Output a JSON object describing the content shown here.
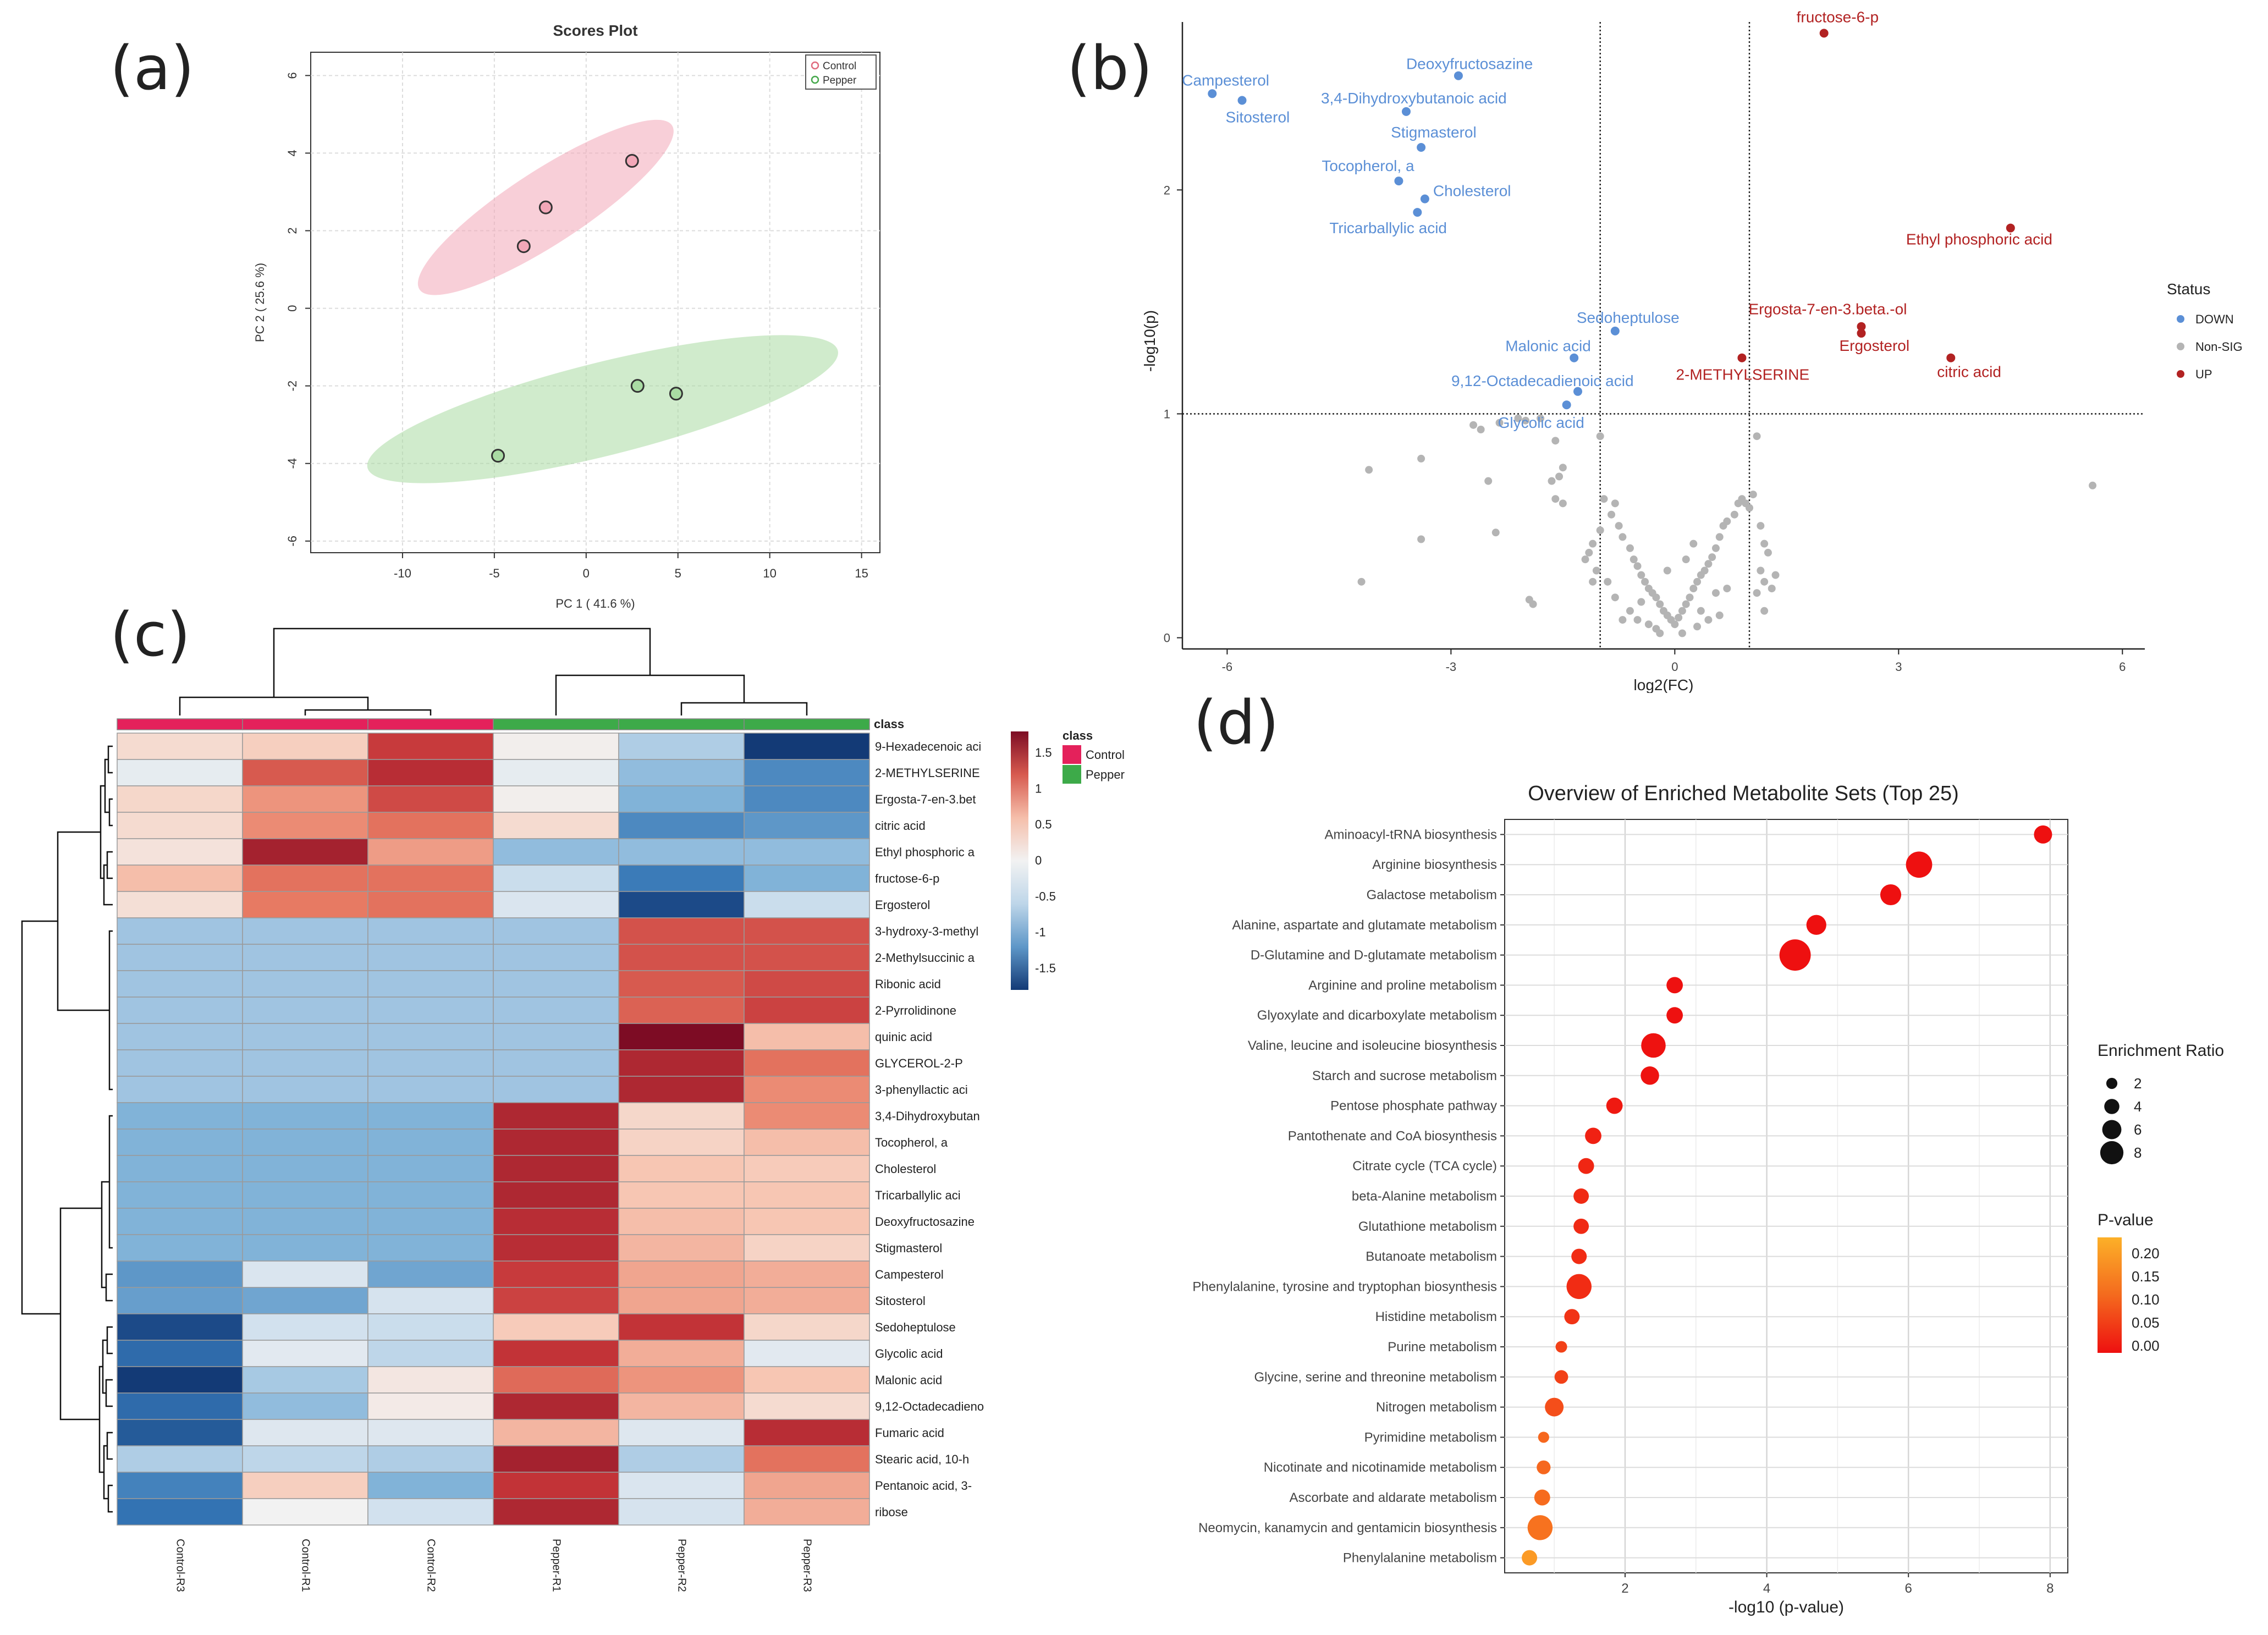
{
  "panel_labels": [
    "(a)",
    "(b)",
    "(c)",
    "(d)"
  ],
  "chart_data": [
    {
      "panel": "(a)",
      "type": "scatter",
      "title": "Scores Plot",
      "xlabel": "PC 1 ( 41.6 %)",
      "ylabel": "PC 2 ( 25.6 %)",
      "xlim": [
        -15,
        16
      ],
      "ylim": [
        -6.3,
        6.6
      ],
      "xticks": [
        -10,
        -5,
        0,
        5,
        10,
        15
      ],
      "yticks": [
        -6,
        -4,
        -2,
        0,
        2,
        4,
        6
      ],
      "grid": true,
      "legend_position": "top-right",
      "series": [
        {
          "name": "Control",
          "color": "#e06b7e",
          "fill": "#f2a7b8",
          "points": [
            [
              -2.2,
              2.6
            ],
            [
              -3.4,
              1.6
            ],
            [
              2.5,
              3.8
            ]
          ],
          "ellipse": {
            "center": [
              -2.2,
              2.6
            ],
            "semi_major": 8.2,
            "semi_minor": 0.95,
            "angle_deg": 33
          }
        },
        {
          "name": "Pepper",
          "color": "#45a84b",
          "fill": "#a9dba3",
          "points": [
            [
              -4.8,
              -3.8
            ],
            [
              2.8,
              -2.0
            ],
            [
              4.9,
              -2.2
            ]
          ],
          "ellipse": {
            "center": [
              0.9,
              -2.6
            ],
            "semi_major": 13.2,
            "semi_minor": 1.2,
            "angle_deg": 14
          }
        }
      ]
    },
    {
      "panel": "(b)",
      "type": "scatter",
      "title": "",
      "xlabel": "log2(FC)",
      "ylabel": "-log10(p)",
      "xlim": [
        -6.6,
        6.3
      ],
      "ylim": [
        -0.05,
        2.75
      ],
      "xticks": [
        -6,
        -3,
        0,
        3,
        6
      ],
      "yticks": [
        0,
        1,
        2
      ],
      "thresholds": {
        "fc": [
          -1,
          1
        ],
        "p": 1
      },
      "legend_title": "Status",
      "legend": [
        {
          "label": "DOWN",
          "color": "#5b8fd6"
        },
        {
          "label": "Non-SIG",
          "color": "#b4b4b4"
        },
        {
          "label": "UP",
          "color": "#b22222"
        }
      ],
      "up_points": [
        {
          "label": "fructose-6-p",
          "x": 2.0,
          "y": 2.7
        },
        {
          "label": "Ethyl phosphoric acid",
          "x": 4.5,
          "y": 1.83
        },
        {
          "label": "Ergosta-7-en-3.beta.-ol",
          "x": 2.5,
          "y": 1.39
        },
        {
          "label": "Ergosterol",
          "x": 2.5,
          "y": 1.36
        },
        {
          "label": "citric acid",
          "x": 3.7,
          "y": 1.25
        },
        {
          "label": "2-METHYLSERINE",
          "x": 0.9,
          "y": 1.25
        }
      ],
      "down_points": [
        {
          "label": "Campesterol",
          "x": -6.2,
          "y": 2.43
        },
        {
          "label": "Sitosterol",
          "x": -5.8,
          "y": 2.4
        },
        {
          "label": "Deoxyfructosazine",
          "x": -2.9,
          "y": 2.51
        },
        {
          "label": "3,4-Dihydroxybutanoic acid",
          "x": -3.6,
          "y": 2.35
        },
        {
          "label": "Stigmasterol",
          "x": -3.4,
          "y": 2.19
        },
        {
          "label": "Tocopherol, a",
          "x": -3.7,
          "y": 2.04
        },
        {
          "label": "Cholesterol",
          "x": -3.35,
          "y": 1.96
        },
        {
          "label": "Tricarballylic acid",
          "x": -3.45,
          "y": 1.9
        },
        {
          "label": "Sedoheptulose",
          "x": -0.8,
          "y": 1.37
        },
        {
          "label": "Malonic acid",
          "x": -1.35,
          "y": 1.25
        },
        {
          "label": "9,12-Octadecadienoic acid",
          "x": -1.3,
          "y": 1.1
        },
        {
          "label": "Glycolic acid",
          "x": -1.45,
          "y": 1.04
        }
      ],
      "nonsig_points": [
        [
          -4.1,
          0.75
        ],
        [
          -3.4,
          0.8
        ],
        [
          -3.4,
          0.44
        ],
        [
          -4.2,
          0.25
        ],
        [
          -2.5,
          0.7
        ],
        [
          -2.4,
          0.47
        ],
        [
          -2.7,
          0.95
        ],
        [
          -2.6,
          0.93
        ],
        [
          -2.35,
          0.96
        ],
        [
          -2.1,
          0.98
        ],
        [
          -2.0,
          0.97
        ],
        [
          -1.8,
          0.98
        ],
        [
          -1.6,
          0.88
        ],
        [
          -1.55,
          0.72
        ],
        [
          -1.5,
          0.76
        ],
        [
          -1.65,
          0.7
        ],
        [
          -1.6,
          0.62
        ],
        [
          -1.5,
          0.6
        ],
        [
          -1.0,
          0.9
        ],
        [
          -0.95,
          0.62
        ],
        [
          -1.1,
          0.42
        ],
        [
          -1.0,
          0.48
        ],
        [
          -1.15,
          0.38
        ],
        [
          -1.2,
          0.35
        ],
        [
          -1.05,
          0.3
        ],
        [
          -1.1,
          0.25
        ],
        [
          -1.95,
          0.17
        ],
        [
          -1.9,
          0.15
        ],
        [
          -0.9,
          0.25
        ],
        [
          -0.8,
          0.6
        ],
        [
          -0.85,
          0.55
        ],
        [
          -0.75,
          0.5
        ],
        [
          -0.7,
          0.45
        ],
        [
          -0.6,
          0.4
        ],
        [
          -0.55,
          0.35
        ],
        [
          -0.5,
          0.32
        ],
        [
          -0.45,
          0.28
        ],
        [
          -0.4,
          0.25
        ],
        [
          -0.35,
          0.22
        ],
        [
          -0.3,
          0.2
        ],
        [
          -0.25,
          0.18
        ],
        [
          -0.2,
          0.15
        ],
        [
          -0.15,
          0.12
        ],
        [
          -0.1,
          0.1
        ],
        [
          -0.05,
          0.08
        ],
        [
          0.0,
          0.06
        ],
        [
          0.05,
          0.09
        ],
        [
          0.1,
          0.12
        ],
        [
          0.15,
          0.15
        ],
        [
          0.2,
          0.18
        ],
        [
          0.25,
          0.22
        ],
        [
          0.3,
          0.25
        ],
        [
          0.35,
          0.28
        ],
        [
          0.4,
          0.3
        ],
        [
          0.45,
          0.33
        ],
        [
          0.5,
          0.36
        ],
        [
          0.55,
          0.4
        ],
        [
          0.6,
          0.45
        ],
        [
          0.65,
          0.5
        ],
        [
          0.7,
          0.52
        ],
        [
          0.8,
          0.55
        ],
        [
          0.85,
          0.6
        ],
        [
          0.9,
          0.62
        ],
        [
          0.95,
          0.6
        ],
        [
          1.0,
          0.58
        ],
        [
          1.05,
          0.64
        ],
        [
          1.1,
          0.9
        ],
        [
          1.15,
          0.5
        ],
        [
          1.2,
          0.42
        ],
        [
          1.15,
          0.3
        ],
        [
          1.2,
          0.25
        ],
        [
          1.1,
          0.2
        ],
        [
          1.25,
          0.38
        ],
        [
          1.3,
          0.22
        ],
        [
          1.2,
          0.12
        ],
        [
          1.35,
          0.28
        ],
        [
          -0.6,
          0.12
        ],
        [
          -0.5,
          0.08
        ],
        [
          -0.35,
          0.06
        ],
        [
          -0.25,
          0.04
        ],
        [
          0.1,
          0.02
        ],
        [
          0.3,
          0.05
        ],
        [
          0.45,
          0.08
        ],
        [
          0.6,
          0.1
        ],
        [
          0.35,
          0.12
        ],
        [
          -0.2,
          0.02
        ],
        [
          -0.8,
          0.18
        ],
        [
          -0.7,
          0.08
        ],
        [
          0.7,
          0.22
        ],
        [
          -0.45,
          0.16
        ],
        [
          0.15,
          0.35
        ],
        [
          -0.1,
          0.3
        ],
        [
          0.25,
          0.42
        ],
        [
          0.55,
          0.2
        ],
        [
          5.6,
          0.68
        ]
      ]
    },
    {
      "panel": "(c)",
      "type": "heatmap",
      "title": "",
      "columns": [
        "Control-R3",
        "Control-R1",
        "Control-R2",
        "Pepper-R1",
        "Pepper-R2",
        "Pepper-R3"
      ],
      "column_classes": [
        "Control",
        "Control",
        "Control",
        "Pepper",
        "Pepper",
        "Pepper"
      ],
      "class_label": "class",
      "class_legend": [
        {
          "label": "Control",
          "color": "#e4215b"
        },
        {
          "label": "Pepper",
          "color": "#3daa49"
        }
      ],
      "color_scale": {
        "min": -1.8,
        "max": 1.8,
        "ticks": [
          1.5,
          1,
          0.5,
          0,
          -0.5,
          -1,
          -1.5
        ]
      },
      "rows": [
        {
          "name": "9-Hexadecenoic aci",
          "values": [
            0.3,
            0.45,
            1.4,
            0.05,
            -0.7,
            -1.9
          ]
        },
        {
          "name": "2-METHYLSERINE",
          "values": [
            -0.15,
            1.2,
            1.5,
            -0.15,
            -0.9,
            -1.3
          ]
        },
        {
          "name": "Ergosta-7-en-3.bet",
          "values": [
            0.35,
            0.85,
            1.3,
            0.05,
            -1.0,
            -1.3
          ]
        },
        {
          "name": "citric acid",
          "values": [
            0.3,
            0.9,
            1.05,
            0.3,
            -1.3,
            -1.2
          ]
        },
        {
          "name": "Ethyl phosphoric a",
          "values": [
            0.2,
            1.6,
            0.8,
            -0.9,
            -0.9,
            -0.9
          ]
        },
        {
          "name": "fructose-6-p",
          "values": [
            0.6,
            1.05,
            1.05,
            -0.5,
            -1.4,
            -1.0
          ]
        },
        {
          "name": "Ergosterol",
          "values": [
            0.25,
            1.0,
            1.05,
            -0.3,
            -1.7,
            -0.5
          ]
        },
        {
          "name": "3-hydroxy-3-methyl",
          "values": [
            -0.8,
            -0.8,
            -0.8,
            -0.8,
            1.25,
            1.25
          ]
        },
        {
          "name": "2-Methylsuccinic a",
          "values": [
            -0.8,
            -0.8,
            -0.8,
            -0.8,
            1.25,
            1.25
          ]
        },
        {
          "name": "Ribonic acid",
          "values": [
            -0.8,
            -0.8,
            -0.8,
            -0.8,
            1.2,
            1.3
          ]
        },
        {
          "name": "2-Pyrrolidinone",
          "values": [
            -0.8,
            -0.8,
            -0.8,
            -0.8,
            1.15,
            1.35
          ]
        },
        {
          "name": "quinic acid",
          "values": [
            -0.8,
            -0.8,
            -0.8,
            -0.8,
            1.8,
            0.6
          ]
        },
        {
          "name": "GLYCEROL-2-P",
          "values": [
            -0.8,
            -0.8,
            -0.8,
            -0.8,
            1.55,
            1.05
          ]
        },
        {
          "name": "3-phenyllactic aci",
          "values": [
            -0.8,
            -0.8,
            -0.8,
            -0.8,
            1.55,
            0.9
          ]
        },
        {
          "name": "3,4-Dihydroxybutan",
          "values": [
            -1.0,
            -1.0,
            -1.0,
            1.55,
            0.35,
            0.9
          ]
        },
        {
          "name": "Tocopherol, a",
          "values": [
            -1.0,
            -1.0,
            -1.0,
            1.55,
            0.4,
            0.6
          ]
        },
        {
          "name": "Cholesterol",
          "values": [
            -1.0,
            -1.0,
            -1.0,
            1.55,
            0.55,
            0.5
          ]
        },
        {
          "name": "Tricarballylic aci",
          "values": [
            -1.0,
            -1.0,
            -1.0,
            1.55,
            0.55,
            0.55
          ]
        },
        {
          "name": "Deoxyfructosazine",
          "values": [
            -1.0,
            -1.0,
            -1.0,
            1.5,
            0.6,
            0.55
          ]
        },
        {
          "name": "Stigmasterol",
          "values": [
            -1.0,
            -1.0,
            -1.0,
            1.5,
            0.65,
            0.4
          ]
        },
        {
          "name": "Campesterol",
          "values": [
            -1.2,
            -0.3,
            -1.1,
            1.4,
            0.75,
            0.7
          ]
        },
        {
          "name": "Sitosterol",
          "values": [
            -1.15,
            -1.1,
            -0.35,
            1.35,
            0.75,
            0.7
          ]
        },
        {
          "name": "Sedoheptulose",
          "values": [
            -1.7,
            -0.4,
            -0.5,
            0.5,
            1.45,
            0.35
          ]
        },
        {
          "name": "Glycolic acid",
          "values": [
            -1.5,
            -0.2,
            -0.6,
            1.45,
            0.7,
            -0.2
          ]
        },
        {
          "name": "Malonic acid",
          "values": [
            -1.9,
            -0.75,
            0.15,
            1.1,
            0.85,
            0.55
          ]
        },
        {
          "name": "9,12-Octadecadieno",
          "values": [
            -1.5,
            -0.9,
            0.1,
            1.55,
            0.65,
            0.3
          ]
        },
        {
          "name": "Fumaric acid",
          "values": [
            -1.6,
            -0.25,
            -0.25,
            0.65,
            -0.25,
            1.5
          ]
        },
        {
          "name": "Stearic acid, 10-h",
          "values": [
            -0.7,
            -0.6,
            -0.7,
            1.6,
            -0.7,
            1.05
          ]
        },
        {
          "name": "Pentanoic acid, 3-",
          "values": [
            -1.35,
            0.45,
            -1.0,
            1.45,
            -0.3,
            0.75
          ]
        },
        {
          "name": "ribose",
          "values": [
            -1.45,
            0.0,
            -0.4,
            1.55,
            -0.35,
            0.7
          ]
        }
      ]
    },
    {
      "panel": "(d)",
      "type": "scatter",
      "title": "Overview of Enriched Metabolite Sets (Top 25)",
      "xlabel": "-log10 (p-value)",
      "xlim": [
        0.3,
        8.25
      ],
      "xticks": [
        2,
        4,
        6,
        8
      ],
      "size_legend_title": "Enrichment Ratio",
      "size_legend": [
        2,
        4,
        6,
        8
      ],
      "color_legend_title": "P-value",
      "color_legend_ticks": [
        "0.20",
        "0.15",
        "0.10",
        "0.05",
        "0.00"
      ],
      "color_range": [
        0,
        0.25
      ],
      "categories": [
        {
          "name": "Aminoacyl-tRNA biosynthesis",
          "x": 7.9,
          "ratio": 3.7
        },
        {
          "name": "Arginine biosynthesis",
          "x": 6.15,
          "ratio": 6.9
        },
        {
          "name": "Galactose metabolism",
          "x": 5.75,
          "ratio": 4.8
        },
        {
          "name": "Alanine, aspartate and glutamate metabolism",
          "x": 4.7,
          "ratio": 4.4
        },
        {
          "name": "D-Glutamine and D-glutamate metabolism",
          "x": 4.4,
          "ratio": 8.9
        },
        {
          "name": "Arginine and proline metabolism",
          "x": 2.7,
          "ratio": 3.0
        },
        {
          "name": "Glyoxylate and dicarboxylate metabolism",
          "x": 2.7,
          "ratio": 3.0
        },
        {
          "name": "Valine, leucine and isoleucine biosynthesis",
          "x": 2.4,
          "ratio": 6.2
        },
        {
          "name": "Starch and sucrose metabolism",
          "x": 2.35,
          "ratio": 3.8
        },
        {
          "name": "Pentose phosphate pathway",
          "x": 1.85,
          "ratio": 3.0
        },
        {
          "name": "Pantothenate and CoA biosynthesis",
          "x": 1.55,
          "ratio": 3.0
        },
        {
          "name": "Citrate cycle (TCA cycle)",
          "x": 1.45,
          "ratio": 2.8
        },
        {
          "name": "beta-Alanine metabolism",
          "x": 1.38,
          "ratio": 2.6
        },
        {
          "name": "Glutathione metabolism",
          "x": 1.38,
          "ratio": 2.6
        },
        {
          "name": "Butanoate metabolism",
          "x": 1.35,
          "ratio": 2.6
        },
        {
          "name": "Phenylalanine, tyrosine and tryptophan biosynthesis",
          "x": 1.35,
          "ratio": 6.4
        },
        {
          "name": "Histidine metabolism",
          "x": 1.25,
          "ratio": 2.6
        },
        {
          "name": "Purine metabolism",
          "x": 1.1,
          "ratio": 1.1
        },
        {
          "name": "Glycine, serine and threonine metabolism",
          "x": 1.1,
          "ratio": 1.9
        },
        {
          "name": "Nitrogen metabolism",
          "x": 1.0,
          "ratio": 3.9
        },
        {
          "name": "Pyrimidine metabolism",
          "x": 0.85,
          "ratio": 0.9
        },
        {
          "name": "Nicotinate and nicotinamide metabolism",
          "x": 0.85,
          "ratio": 2.0
        },
        {
          "name": "Ascorbate and aldarate metabolism",
          "x": 0.83,
          "ratio": 2.8
        },
        {
          "name": "Neomycin, kanamycin and gentamicin biosynthesis",
          "x": 0.8,
          "ratio": 6.4
        },
        {
          "name": "Phenylalanine metabolism",
          "x": 0.65,
          "ratio": 2.6
        }
      ]
    }
  ]
}
